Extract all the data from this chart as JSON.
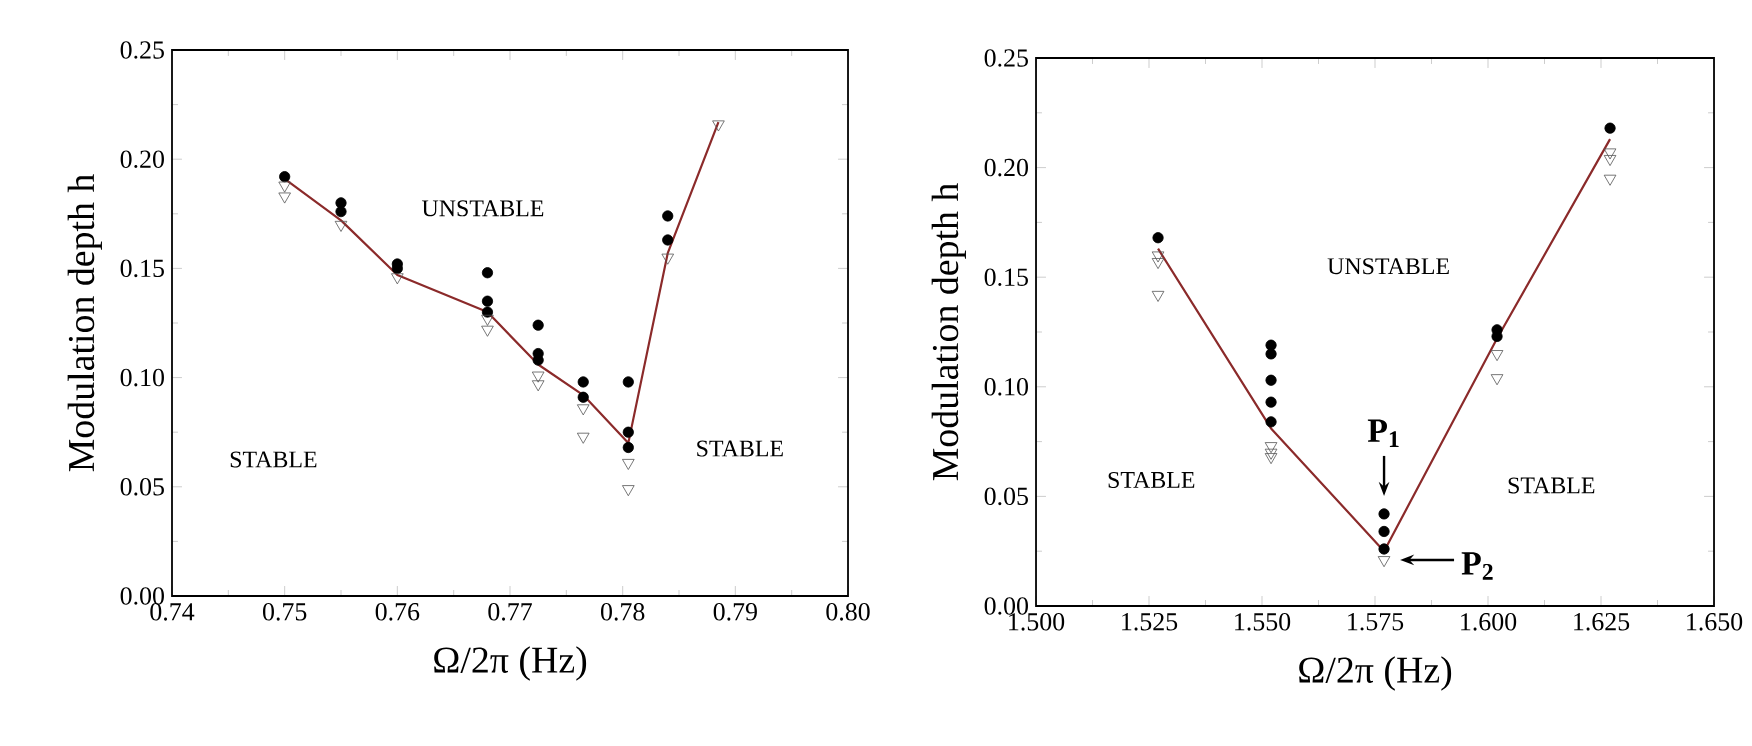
{
  "chart_data": [
    {
      "type": "scatter",
      "xlabel": "Ω/2π (Hz)",
      "ylabel": "Modulation depth h",
      "xlim": [
        0.74,
        0.8
      ],
      "ylim": [
        0,
        0.25
      ],
      "xticks": [
        0.74,
        0.75,
        0.76,
        0.77,
        0.78,
        0.79,
        {
          "value": 0.8,
          "label": "0.80"
        }
      ],
      "yticks": [
        {
          "value": 0,
          "label": "0.00"
        },
        0.05,
        {
          "value": 0.1,
          "label": "0.10"
        },
        0.15,
        {
          "value": 0.2,
          "label": "0.20"
        },
        0.25
      ],
      "series": [
        {
          "type": "scatter",
          "marker": "circle",
          "color": "#000000",
          "x": [
            0.75,
            0.755,
            0.755,
            0.76,
            0.76,
            0.768,
            0.768,
            0.768,
            0.7725,
            0.7725,
            0.7725,
            0.7765,
            0.7765,
            0.7805,
            0.7805,
            0.7805,
            0.784,
            0.784
          ],
          "values": [
            0.192,
            0.18,
            0.176,
            0.152,
            0.15,
            0.148,
            0.135,
            0.13,
            0.124,
            0.111,
            0.108,
            0.098,
            0.091,
            0.098,
            0.075,
            0.068,
            0.174,
            0.163
          ]
        },
        {
          "type": "scatter",
          "marker": "triangle",
          "color": "#555555",
          "x": [
            0.75,
            0.75,
            0.755,
            0.76,
            0.768,
            0.768,
            0.7725,
            0.7725,
            0.7765,
            0.7765,
            0.7805,
            0.7805,
            0.784,
            0.7885
          ],
          "values": [
            0.188,
            0.183,
            0.17,
            0.146,
            0.127,
            0.122,
            0.101,
            0.097,
            0.086,
            0.073,
            0.061,
            0.049,
            0.155,
            0.216
          ]
        },
        {
          "type": "line",
          "marker": "none",
          "color": "#8b2a2a",
          "x": [
            0.75,
            0.755,
            0.76,
            0.768,
            0.7725,
            0.7765,
            0.7805,
            0.784,
            0.7885
          ],
          "values": [
            0.191,
            0.172,
            0.147,
            0.13,
            0.106,
            0.092,
            0.07,
            0.157,
            0.217
          ]
        }
      ],
      "annotations": [
        "UNSTABLE",
        "STABLE",
        "STABLE"
      ]
    },
    {
      "type": "scatter",
      "xlabel": "Ω/2π (Hz)",
      "ylabel": "Modulation depth h",
      "xlim": [
        1.5,
        1.65
      ],
      "ylim": [
        0,
        0.25
      ],
      "xticks": [
        {
          "value": 1.5,
          "label": "1.500"
        },
        1.525,
        {
          "value": 1.55,
          "label": "1.550"
        },
        1.575,
        {
          "value": 1.6,
          "label": "1.600"
        },
        1.625,
        {
          "value": 1.65,
          "label": "1.650"
        }
      ],
      "yticks": [
        {
          "value": 0,
          "label": "0.00"
        },
        0.05,
        {
          "value": 0.1,
          "label": "0.10"
        },
        0.15,
        {
          "value": 0.2,
          "label": "0.20"
        },
        0.25
      ],
      "series": [
        {
          "type": "scatter",
          "marker": "circle",
          "color": "#000000",
          "x": [
            1.527,
            1.552,
            1.552,
            1.552,
            1.552,
            1.552,
            1.577,
            1.577,
            1.577,
            1.602,
            1.602,
            1.627
          ],
          "values": [
            0.168,
            0.119,
            0.115,
            0.103,
            0.093,
            0.084,
            0.042,
            0.034,
            0.026,
            0.126,
            0.123,
            0.218
          ]
        },
        {
          "type": "scatter",
          "marker": "triangle",
          "color": "#555555",
          "x": [
            1.527,
            1.527,
            1.527,
            1.552,
            1.552,
            1.552,
            1.577,
            1.602,
            1.602,
            1.627,
            1.627,
            1.627
          ],
          "values": [
            0.16,
            0.157,
            0.142,
            0.073,
            0.07,
            0.068,
            0.021,
            0.115,
            0.104,
            0.207,
            0.204,
            0.195
          ]
        },
        {
          "type": "line",
          "marker": "none",
          "color": "#8b2a2a",
          "x": [
            1.527,
            1.552,
            1.577,
            1.602,
            1.627
          ],
          "values": [
            0.163,
            0.081,
            0.025,
            0.122,
            0.213
          ]
        }
      ],
      "annotations": [
        "UNSTABLE",
        "STABLE",
        "STABLE",
        {
          "text": "P$_{1}$",
          "x": 1.577,
          "y": 0.042
        },
        {
          "text": "P$_{2}$",
          "x": 1.577,
          "y": 0.021
        }
      ]
    }
  ]
}
